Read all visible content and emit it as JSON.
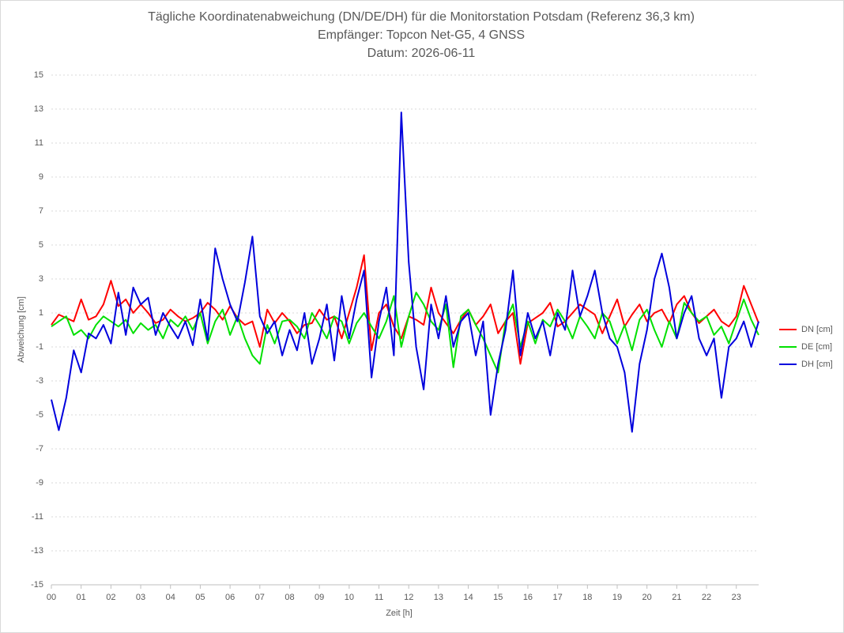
{
  "chart_data": {
    "type": "line",
    "title": [
      "Tägliche Koordinatenabweichung (DN/DE/DH) für die Monitorstation Potsdam (Referenz 36,3 km)",
      "Empfänger: Topcon Net-G5, 4 GNSS",
      "Datum: 2026-06-11"
    ],
    "x_label": "Zeit [h]",
    "y_label": "Abweichung [cm]",
    "x": [
      0,
      0.25,
      0.5,
      0.75,
      1,
      1.25,
      1.5,
      1.75,
      2,
      2.25,
      2.5,
      2.75,
      3,
      3.25,
      3.5,
      3.75,
      4,
      4.25,
      4.5,
      4.75,
      5,
      5.25,
      5.5,
      5.75,
      6,
      6.25,
      6.5,
      6.75,
      7,
      7.25,
      7.5,
      7.75,
      8,
      8.25,
      8.5,
      8.75,
      9,
      9.25,
      9.5,
      9.75,
      10,
      10.25,
      10.5,
      10.75,
      11,
      11.25,
      11.5,
      11.75,
      12,
      12.25,
      12.5,
      12.75,
      13,
      13.25,
      13.5,
      13.75,
      14,
      14.25,
      14.5,
      14.75,
      15,
      15.25,
      15.5,
      15.75,
      16,
      16.25,
      16.5,
      16.75,
      17,
      17.25,
      17.5,
      17.75,
      18,
      18.25,
      18.5,
      18.75,
      19,
      19.25,
      19.5,
      19.75,
      20,
      20.25,
      20.5,
      20.75,
      21,
      21.25,
      21.5,
      21.75,
      22,
      22.25,
      22.5,
      22.75,
      23,
      23.25,
      23.5,
      23.75
    ],
    "series": [
      {
        "name": "DN [cm]",
        "color": "#ff0000",
        "values": [
          0.3,
          0.9,
          0.7,
          0.5,
          1.8,
          0.6,
          0.8,
          1.5,
          2.9,
          1.4,
          1.8,
          1.0,
          1.5,
          1.0,
          0.4,
          0.6,
          1.2,
          0.8,
          0.5,
          0.7,
          1.0,
          1.6,
          1.2,
          0.6,
          1.4,
          0.7,
          0.3,
          0.5,
          -1.0,
          1.2,
          0.4,
          1.0,
          0.5,
          -0.2,
          0.3,
          0.4,
          1.2,
          0.6,
          0.8,
          -0.5,
          1.0,
          2.5,
          4.4,
          -1.2,
          1.0,
          1.5,
          0.2,
          -0.5,
          0.8,
          0.6,
          0.3,
          2.5,
          1.0,
          0.4,
          -0.2,
          0.6,
          1.2,
          0.3,
          0.8,
          1.5,
          -0.2,
          0.5,
          1.0,
          -2.0,
          0.4,
          0.7,
          1.0,
          1.6,
          0.2,
          0.5,
          1.0,
          1.5,
          1.2,
          0.9,
          -0.2,
          0.8,
          1.8,
          0.2,
          0.9,
          1.5,
          0.5,
          1.0,
          1.2,
          0.4,
          1.5,
          2.0,
          1.0,
          0.4,
          0.8,
          1.2,
          0.5,
          0.2,
          0.8,
          2.6,
          1.5,
          0.4
        ]
      },
      {
        "name": "DE [cm]",
        "color": "#00e000",
        "values": [
          0.2,
          0.5,
          0.8,
          -0.3,
          0.0,
          -0.5,
          0.3,
          0.8,
          0.5,
          0.2,
          0.6,
          -0.2,
          0.4,
          0.0,
          0.3,
          -0.5,
          0.6,
          0.2,
          0.8,
          0.0,
          1.0,
          -0.8,
          0.5,
          1.2,
          -0.3,
          0.8,
          -0.5,
          -1.5,
          -2.0,
          0.3,
          -0.8,
          0.5,
          0.6,
          0.2,
          -0.5,
          1.0,
          0.3,
          -0.5,
          0.8,
          0.5,
          -0.8,
          0.4,
          1.0,
          0.2,
          -0.5,
          0.5,
          2.0,
          -1.0,
          0.8,
          2.2,
          1.5,
          0.5,
          0.0,
          1.5,
          -2.2,
          0.8,
          1.2,
          0.3,
          -0.5,
          -1.5,
          -2.5,
          0.5,
          1.5,
          -1.0,
          0.5,
          -0.8,
          0.6,
          0.2,
          1.2,
          0.5,
          -0.5,
          0.8,
          0.2,
          -0.5,
          1.0,
          0.5,
          -0.8,
          0.3,
          -1.2,
          0.6,
          1.2,
          0.0,
          -1.0,
          0.5,
          -0.5,
          1.6,
          1.0,
          0.5,
          0.8,
          -0.3,
          0.2,
          -0.8,
          0.5,
          1.8,
          0.6,
          -0.3
        ]
      },
      {
        "name": "DH [cm]",
        "color": "#0000dd",
        "values": [
          -4.1,
          -5.9,
          -4.0,
          -1.2,
          -2.5,
          -0.2,
          -0.5,
          0.3,
          -0.8,
          2.2,
          -0.3,
          2.5,
          1.5,
          1.9,
          -0.3,
          1.0,
          0.2,
          -0.5,
          0.5,
          -0.9,
          1.8,
          -0.6,
          4.8,
          3.0,
          1.5,
          0.5,
          2.8,
          5.5,
          0.8,
          -0.2,
          0.5,
          -1.5,
          0.0,
          -1.2,
          1.0,
          -2.0,
          -0.5,
          1.5,
          -1.8,
          2.0,
          -0.5,
          1.8,
          3.5,
          -2.8,
          0.5,
          2.5,
          -1.5,
          12.8,
          4.0,
          -1.0,
          -3.5,
          1.5,
          -0.5,
          2.0,
          -1.0,
          0.5,
          1.0,
          -1.5,
          0.5,
          -5.0,
          -2.0,
          0.0,
          3.5,
          -1.5,
          1.0,
          -0.5,
          0.5,
          -1.5,
          1.0,
          0.0,
          3.5,
          0.8,
          2.0,
          3.5,
          1.0,
          -0.5,
          -1.0,
          -2.5,
          -6.0,
          -2.0,
          0.0,
          3.0,
          4.5,
          2.5,
          -0.5,
          1.0,
          2.0,
          -0.5,
          -1.5,
          -0.5,
          -4.0,
          -1.0,
          -0.5,
          0.5,
          -1.0,
          0.5
        ]
      }
    ],
    "xlim": [
      0,
      23.75
    ],
    "xticks": [
      {
        "value": 0,
        "label": "00"
      },
      {
        "value": 1,
        "label": "01"
      },
      {
        "value": 2,
        "label": "02"
      },
      {
        "value": 3,
        "label": "03"
      },
      {
        "value": 4,
        "label": "04"
      },
      {
        "value": 5,
        "label": "05"
      },
      {
        "value": 6,
        "label": "06"
      },
      {
        "value": 7,
        "label": "07"
      },
      {
        "value": 8,
        "label": "08"
      },
      {
        "value": 9,
        "label": "09"
      },
      10,
      11,
      12,
      13,
      14,
      15,
      16,
      17,
      18,
      19,
      20,
      21,
      22,
      23
    ],
    "ylim": [
      -15,
      15
    ],
    "yticks": [
      -15,
      -13,
      -11,
      -9,
      -7,
      -5,
      -3,
      -1,
      1,
      3,
      5,
      7,
      9,
      11,
      13,
      15
    ],
    "grid": true,
    "legend": "right"
  }
}
